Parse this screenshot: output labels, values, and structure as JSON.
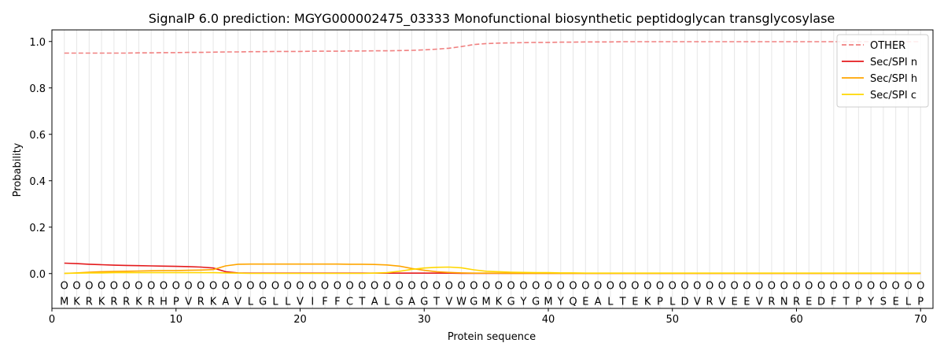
{
  "chart_data": {
    "type": "line",
    "title": "SignalP 6.0 prediction: MGYG000002475_03333 Monofunctional biosynthetic peptidoglycan transglycosylase",
    "xlabel": "Protein sequence",
    "ylabel": "Probability",
    "xlim": [
      0,
      71
    ],
    "ylim": [
      -0.15,
      1.05
    ],
    "x_ticks": [
      0,
      10,
      20,
      30,
      40,
      50,
      60,
      70
    ],
    "y_ticks": [
      0.0,
      0.2,
      0.4,
      0.6,
      0.8,
      1.0
    ],
    "y_tick_labels": [
      "0.0",
      "0.2",
      "0.4",
      "0.6",
      "0.8",
      "1.0"
    ],
    "legend_position": "top-right",
    "sequence": [
      "M",
      "K",
      "R",
      "K",
      "R",
      "R",
      "K",
      "R",
      "H",
      "P",
      "V",
      "R",
      "K",
      "A",
      "V",
      "L",
      "G",
      "L",
      "L",
      "V",
      "I",
      "F",
      "F",
      "C",
      "T",
      "A",
      "L",
      "G",
      "A",
      "G",
      "T",
      "V",
      "W",
      "G",
      "M",
      "K",
      "G",
      "Y",
      "G",
      "M",
      "Y",
      "Q",
      "E",
      "A",
      "L",
      "T",
      "E",
      "K",
      "P",
      "L",
      "D",
      "V",
      "R",
      "V",
      "E",
      "E",
      "V",
      "R",
      "N",
      "R",
      "E",
      "D",
      "F",
      "T",
      "P",
      "Y",
      "S",
      "E",
      "L",
      "P"
    ],
    "region_marker": "O",
    "series": [
      {
        "name": "OTHER",
        "color": "#f08080",
        "dashed": true,
        "values": [
          0.95,
          0.95,
          0.95,
          0.95,
          0.95,
          0.95,
          0.951,
          0.951,
          0.952,
          0.952,
          0.953,
          0.953,
          0.954,
          0.955,
          0.955,
          0.956,
          0.956,
          0.957,
          0.957,
          0.957,
          0.958,
          0.958,
          0.958,
          0.959,
          0.959,
          0.96,
          0.96,
          0.961,
          0.962,
          0.964,
          0.967,
          0.971,
          0.978,
          0.987,
          0.991,
          0.993,
          0.994,
          0.995,
          0.996,
          0.996,
          0.997,
          0.997,
          0.998,
          0.998,
          0.998,
          0.999,
          0.999,
          0.999,
          0.999,
          0.999,
          0.999,
          0.999,
          0.999,
          0.999,
          0.999,
          0.999,
          0.999,
          0.999,
          0.999,
          0.999,
          0.999,
          0.999,
          0.999,
          0.999,
          0.999,
          0.999,
          0.999,
          0.999,
          0.999,
          0.999
        ]
      },
      {
        "name": "Sec/SPI n",
        "color": "#e41a1c",
        "dashed": false,
        "values": [
          0.045,
          0.043,
          0.04,
          0.038,
          0.036,
          0.035,
          0.034,
          0.033,
          0.032,
          0.031,
          0.03,
          0.028,
          0.024,
          0.008,
          0.003,
          0.002,
          0.002,
          0.002,
          0.002,
          0.002,
          0.002,
          0.002,
          0.002,
          0.002,
          0.002,
          0.002,
          0.002,
          0.002,
          0.002,
          0.002,
          0.002,
          0.002,
          0.001,
          0.001,
          0.001,
          0.001,
          0.001,
          0.001,
          0.001,
          0.001,
          0.001,
          0.001,
          0.001,
          0.001,
          0.001,
          0.001,
          0.001,
          0.001,
          0.001,
          0.001,
          0.001,
          0.001,
          0.001,
          0.001,
          0.001,
          0.001,
          0.001,
          0.001,
          0.001,
          0.001,
          0.001,
          0.001,
          0.001,
          0.001,
          0.001,
          0.001,
          0.001,
          0.001,
          0.001,
          0.001
        ]
      },
      {
        "name": "Sec/SPI h",
        "color": "#ffa500",
        "dashed": false,
        "values": [
          0.001,
          0.003,
          0.006,
          0.008,
          0.009,
          0.01,
          0.011,
          0.012,
          0.013,
          0.013,
          0.014,
          0.015,
          0.017,
          0.033,
          0.04,
          0.041,
          0.041,
          0.041,
          0.041,
          0.041,
          0.041,
          0.041,
          0.041,
          0.04,
          0.04,
          0.039,
          0.037,
          0.032,
          0.022,
          0.014,
          0.008,
          0.005,
          0.003,
          0.002,
          0.002,
          0.002,
          0.001,
          0.001,
          0.001,
          0.001,
          0.001,
          0.001,
          0.001,
          0.001,
          0.001,
          0.001,
          0.001,
          0.001,
          0.001,
          0.001,
          0.001,
          0.001,
          0.001,
          0.001,
          0.001,
          0.001,
          0.001,
          0.001,
          0.001,
          0.001,
          0.001,
          0.001,
          0.001,
          0.001,
          0.001,
          0.001,
          0.001,
          0.001,
          0.001,
          0.001
        ]
      },
      {
        "name": "Sec/SPI c",
        "color": "#ffd700",
        "dashed": false,
        "values": [
          0.001,
          0.002,
          0.003,
          0.003,
          0.004,
          0.004,
          0.004,
          0.004,
          0.004,
          0.004,
          0.004,
          0.004,
          0.004,
          0.003,
          0.002,
          0.001,
          0.001,
          0.001,
          0.001,
          0.001,
          0.001,
          0.001,
          0.001,
          0.001,
          0.001,
          0.002,
          0.004,
          0.01,
          0.018,
          0.024,
          0.027,
          0.028,
          0.025,
          0.016,
          0.01,
          0.008,
          0.006,
          0.005,
          0.004,
          0.004,
          0.003,
          0.003,
          0.002,
          0.002,
          0.002,
          0.002,
          0.002,
          0.002,
          0.002,
          0.002,
          0.002,
          0.002,
          0.002,
          0.002,
          0.002,
          0.002,
          0.002,
          0.002,
          0.002,
          0.002,
          0.002,
          0.002,
          0.002,
          0.002,
          0.002,
          0.002,
          0.002,
          0.002,
          0.002,
          0.002
        ]
      }
    ]
  }
}
